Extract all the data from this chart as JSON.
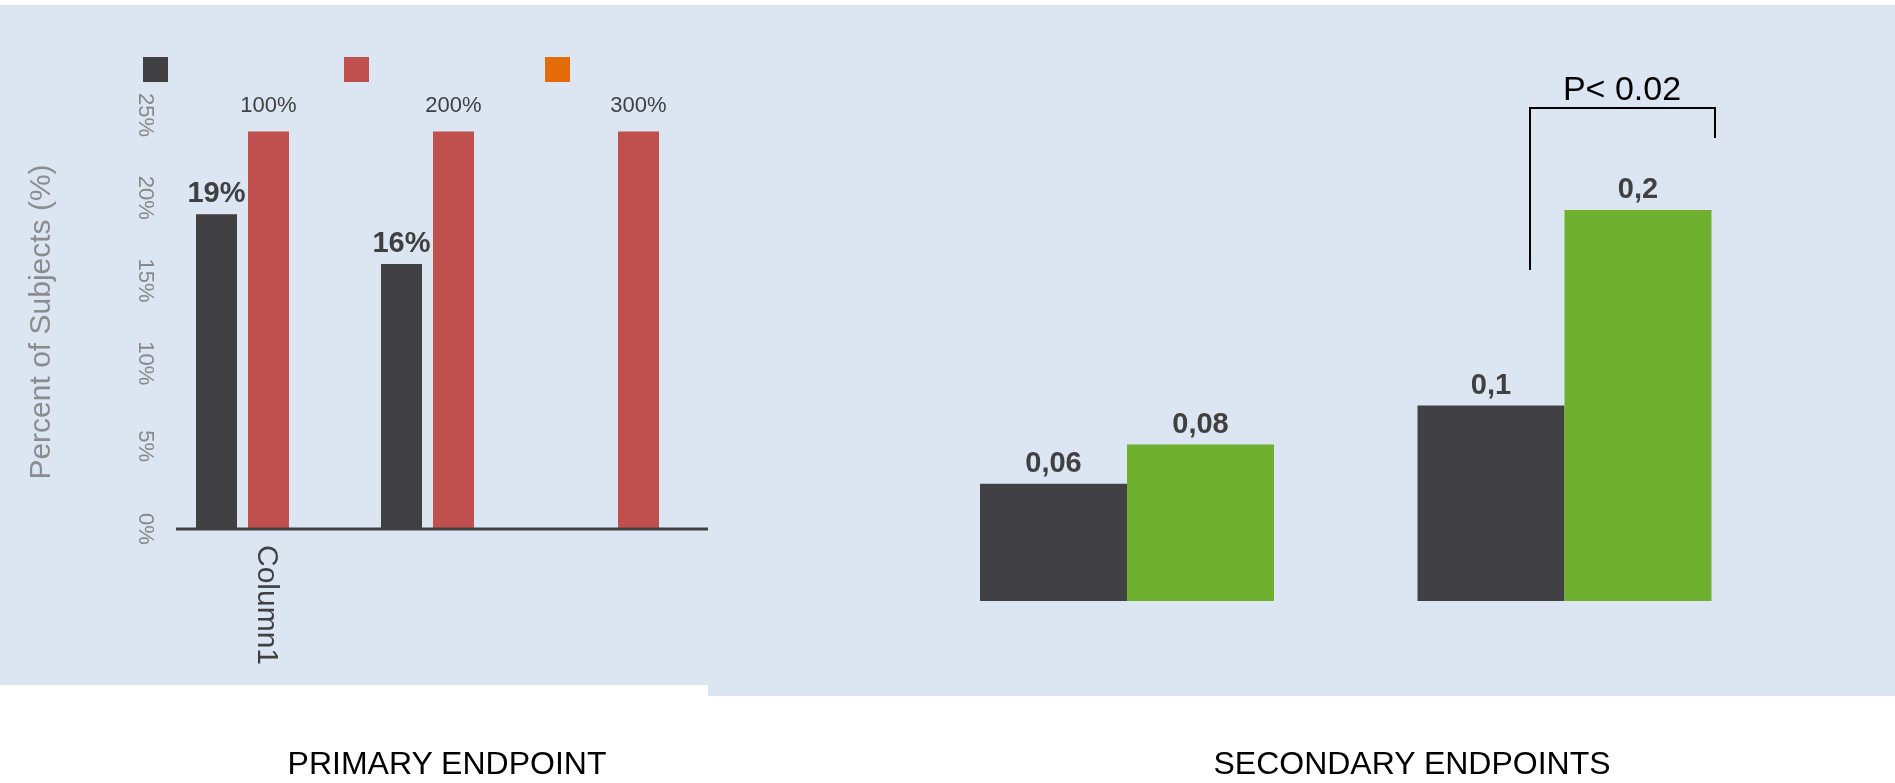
{
  "chart_data": [
    {
      "type": "bar",
      "title": "PRIMARY ENDPOINT",
      "ylabel": "Percent of Subjects (%)",
      "categories": [
        "Column1",
        null,
        null
      ],
      "series": [
        {
          "color": "#404043",
          "values": [
            19,
            16,
            null
          ],
          "value_labels": [
            "19%",
            "16%",
            null
          ]
        },
        {
          "color": "#c0504d",
          "values": [
            24,
            24,
            24
          ]
        },
        {
          "color": "#e36c09",
          "values": [
            null,
            null,
            null
          ]
        }
      ],
      "ylim": [
        0,
        25
      ],
      "yticks": [
        {
          "value": 0,
          "label": "0%"
        },
        {
          "value": 5,
          "label": "5%"
        },
        {
          "value": 10,
          "label": "10%"
        },
        {
          "value": 15,
          "label": "15%"
        },
        {
          "value": 20,
          "label": "20%"
        },
        {
          "value": 25,
          "label": "25%"
        }
      ],
      "annotations": [
        "100%",
        "200%",
        "300%"
      ],
      "grid": false
    },
    {
      "type": "bar",
      "title": "SECONDARY ENDPOINTS",
      "categories": [
        null,
        null
      ],
      "series": [
        {
          "color": "#414042",
          "values": [
            0.06,
            0.1
          ],
          "value_labels": [
            "0,06",
            "0,1"
          ]
        },
        {
          "color": "#70b02f",
          "values": [
            0.08,
            0.2
          ],
          "value_labels": [
            "0,08",
            "0,2"
          ]
        }
      ],
      "annotations": [
        "P< 0.02"
      ],
      "legend": false
    }
  ]
}
